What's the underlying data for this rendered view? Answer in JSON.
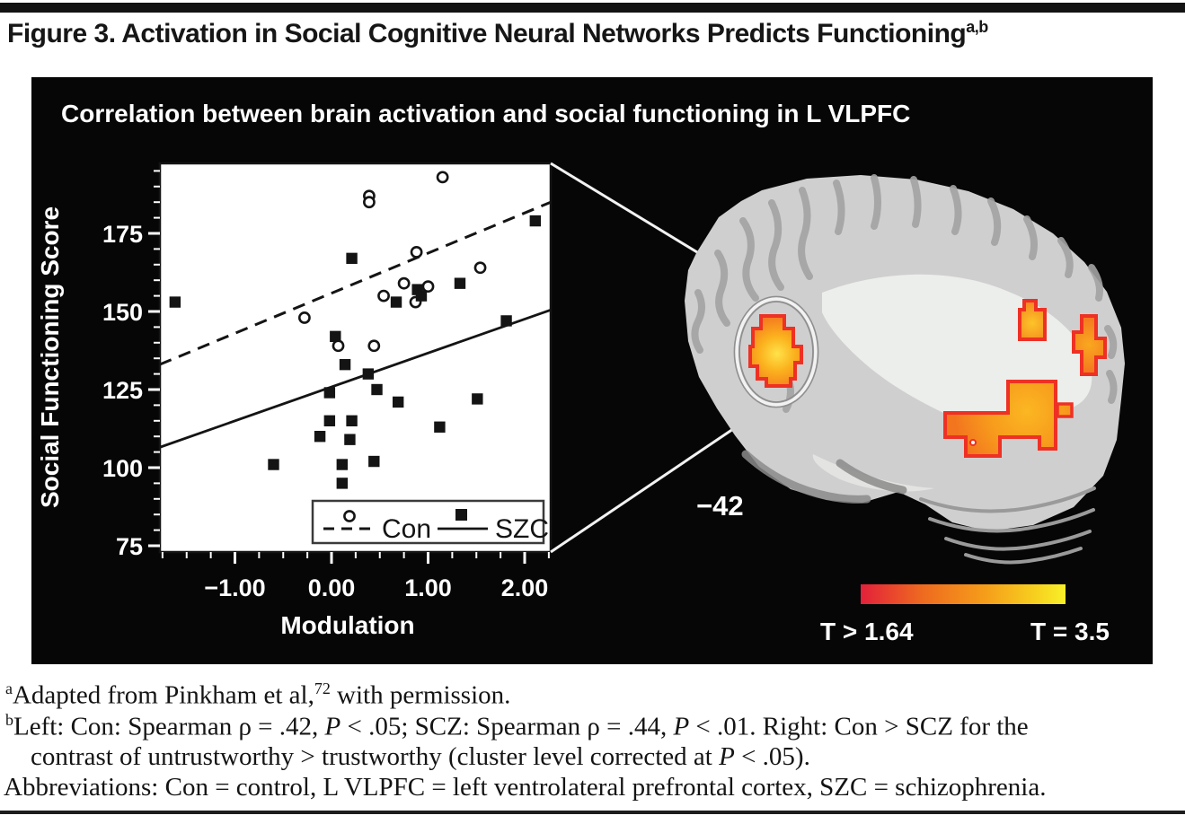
{
  "figure_title": {
    "text": "Figure 3. Activation in Social Cognitive Neural Networks Predicts Functioning",
    "superscript": "a,b"
  },
  "panel": {
    "title": "Correlation between brain activation and social functioning in L VLPFC",
    "slice_label": "−42",
    "colorbar": {
      "min_label": "T > 1.64",
      "max_label": "T = 3.5",
      "start_color": "#e3203a",
      "mid_color": "#f59c1a",
      "end_color": "#f7f028"
    },
    "activation_color": "#f6891f",
    "activation_border_color": "#ee3124"
  },
  "chart_data": {
    "type": "scatter",
    "title": "Correlation between brain activation and social functioning in L VLPFC",
    "xlabel": "Modulation",
    "ylabel": "Social Functioning Score",
    "xlim": [
      -1.78,
      2.27
    ],
    "ylim": [
      73,
      197
    ],
    "x_ticks": [
      -1,
      0,
      1,
      2
    ],
    "x_tick_labels": [
      "−1.00",
      "0.00",
      "1.00",
      "2.00"
    ],
    "x_minor_step": 0.25,
    "y_ticks": [
      75,
      100,
      125,
      150,
      175
    ],
    "y_minor_step": 5,
    "grid": false,
    "legend_position": "bottom-right-inside",
    "series": [
      {
        "name": "Con",
        "marker": "open-circle",
        "trend_line": "dashed",
        "points": [
          [
            1.15,
            193
          ],
          [
            0.39,
            187
          ],
          [
            0.39,
            185
          ],
          [
            0.88,
            169
          ],
          [
            1.54,
            164
          ],
          [
            0.75,
            159
          ],
          [
            1.0,
            158
          ],
          [
            0.54,
            155
          ],
          [
            0.87,
            153
          ],
          [
            -0.28,
            148
          ],
          [
            0.07,
            139
          ],
          [
            0.44,
            139
          ]
        ],
        "trend": {
          "x1": -1.78,
          "y1": 133,
          "x2": 2.27,
          "y2": 185
        }
      },
      {
        "name": "SZC",
        "marker": "filled-square",
        "trend_line": "solid",
        "points": [
          [
            2.11,
            179
          ],
          [
            0.21,
            167
          ],
          [
            1.33,
            159
          ],
          [
            0.89,
            157
          ],
          [
            0.93,
            155
          ],
          [
            0.67,
            153
          ],
          [
            -1.62,
            153
          ],
          [
            1.81,
            147
          ],
          [
            0.04,
            142
          ],
          [
            0.14,
            133
          ],
          [
            0.38,
            130
          ],
          [
            -0.02,
            124
          ],
          [
            0.47,
            125
          ],
          [
            0.69,
            121
          ],
          [
            1.51,
            122
          ],
          [
            1.12,
            113
          ],
          [
            -0.02,
            115
          ],
          [
            0.21,
            115
          ],
          [
            -0.12,
            110
          ],
          [
            0.19,
            109
          ],
          [
            -0.6,
            101
          ],
          [
            0.11,
            101
          ],
          [
            0.44,
            102
          ],
          [
            0.11,
            95
          ]
        ],
        "trend": {
          "x1": -1.78,
          "y1": 106.5,
          "x2": 2.27,
          "y2": 150.5
        }
      }
    ]
  },
  "footnotes": {
    "a": {
      "marker": "a",
      "s1": "Adapted from Pinkham et al,",
      "sup": "72",
      "s2": " with permission."
    },
    "b": {
      "marker": "b",
      "s1": "Left: Con: Spearman ρ = .42, ",
      "i1": "P",
      "s2": " < .05; SCZ: Spearman ρ = .44, ",
      "i2": "P",
      "s3": " < .01. Right: Con > SCZ for the",
      "line2_s1": "contrast of untrustworthy > trustworthy (cluster level corrected at ",
      "line2_i": "P",
      "line2_s2": " < .05)."
    },
    "abbreviations": "Abbreviations: Con = control, L VLPFC = left ventrolateral prefrontal cortex, SZC = schizophrenia."
  }
}
